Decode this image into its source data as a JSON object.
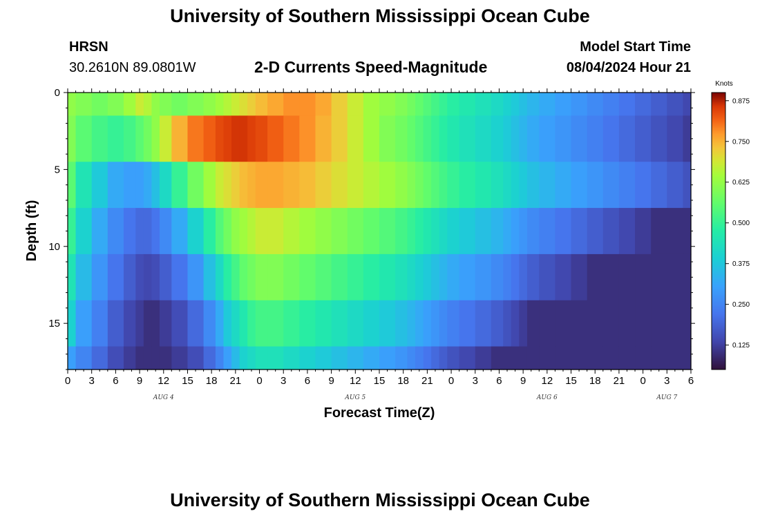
{
  "header": {
    "title": "University of Southern Mississippi Ocean Cube",
    "station": "HRSN",
    "coords": "30.2610N  89.0801W",
    "subtitle": "2-D Currents Speed-Magnitude",
    "model_start_label": "Model Start Time",
    "model_start_value": "08/04/2024 Hour 21"
  },
  "footer": {
    "title": "University of Southern Mississippi Ocean Cube"
  },
  "chart_data": {
    "type": "heatmap",
    "title": "2-D Currents Speed-Magnitude",
    "xlabel": "Forecast Time(Z)",
    "ylabel": "Depth (ft)",
    "xlim_hours": [
      0,
      78
    ],
    "ylim_depth_ft": [
      0,
      18
    ],
    "x_ticks": [
      "0",
      "3",
      "6",
      "9",
      "12",
      "15",
      "18",
      "21",
      "0",
      "3",
      "6",
      "9",
      "12",
      "15",
      "18",
      "21",
      "0",
      "3",
      "6",
      "9",
      "12",
      "15",
      "18",
      "21",
      "0",
      "3",
      "6"
    ],
    "day_labels": [
      {
        "label": "AUG 4",
        "hour": 12
      },
      {
        "label": "AUG 5",
        "hour": 36
      },
      {
        "label": "AUG 6",
        "hour": 60
      },
      {
        "label": "AUG 7",
        "hour": 75
      }
    ],
    "y_ticks": [
      "0",
      "5",
      "10",
      "15"
    ],
    "y_tick_values": [
      0,
      5,
      10,
      15
    ],
    "colorbar": {
      "title": "Knots",
      "min": 0.05,
      "max": 0.9,
      "ticks": [
        "0.125",
        "0.250",
        "0.375",
        "0.500",
        "0.625",
        "0.750",
        "0.875"
      ],
      "tick_values": [
        0.125,
        0.25,
        0.375,
        0.5,
        0.625,
        0.75,
        0.875
      ]
    },
    "hours": [
      0,
      2,
      4,
      6,
      8,
      9,
      10,
      11,
      12,
      14,
      16,
      18,
      19,
      20,
      21,
      22,
      23,
      24,
      26,
      28,
      30,
      32,
      34,
      36,
      38,
      40,
      42,
      43,
      44,
      45,
      46,
      47,
      48,
      50,
      52,
      54,
      55,
      56,
      57,
      58,
      60,
      62,
      64,
      66,
      68,
      70,
      72,
      74,
      76,
      78
    ],
    "depths_ft": [
      0,
      3,
      6,
      9,
      12,
      15,
      18
    ],
    "values_knots": [
      [
        0.62,
        0.6,
        0.58,
        0.6,
        0.64,
        0.68,
        0.66,
        0.62,
        0.6,
        0.58,
        0.6,
        0.62,
        0.64,
        0.66,
        0.68,
        0.7,
        0.72,
        0.74,
        0.76,
        0.78,
        0.78,
        0.76,
        0.72,
        0.68,
        0.64,
        0.62,
        0.6,
        0.58,
        0.56,
        0.54,
        0.52,
        0.5,
        0.48,
        0.46,
        0.44,
        0.42,
        0.4,
        0.38,
        0.36,
        0.34,
        0.32,
        0.3,
        0.28,
        0.26,
        0.24,
        0.22,
        0.2,
        0.18,
        0.16,
        0.14
      ],
      [
        0.6,
        0.55,
        0.52,
        0.5,
        0.52,
        0.55,
        0.58,
        0.62,
        0.68,
        0.75,
        0.8,
        0.82,
        0.84,
        0.85,
        0.86,
        0.86,
        0.85,
        0.84,
        0.82,
        0.8,
        0.78,
        0.75,
        0.72,
        0.68,
        0.64,
        0.6,
        0.58,
        0.56,
        0.54,
        0.52,
        0.5,
        0.48,
        0.46,
        0.44,
        0.42,
        0.4,
        0.38,
        0.36,
        0.34,
        0.32,
        0.3,
        0.28,
        0.26,
        0.24,
        0.22,
        0.2,
        0.18,
        0.16,
        0.14,
        0.12
      ],
      [
        0.55,
        0.45,
        0.38,
        0.32,
        0.3,
        0.3,
        0.32,
        0.36,
        0.42,
        0.5,
        0.58,
        0.64,
        0.68,
        0.7,
        0.72,
        0.74,
        0.75,
        0.76,
        0.76,
        0.75,
        0.74,
        0.72,
        0.7,
        0.68,
        0.66,
        0.64,
        0.62,
        0.6,
        0.58,
        0.56,
        0.54,
        0.52,
        0.5,
        0.48,
        0.46,
        0.44,
        0.42,
        0.4,
        0.38,
        0.36,
        0.34,
        0.32,
        0.3,
        0.28,
        0.26,
        0.24,
        0.22,
        0.2,
        0.18,
        0.16
      ],
      [
        0.5,
        0.4,
        0.32,
        0.26,
        0.22,
        0.2,
        0.2,
        0.22,
        0.26,
        0.32,
        0.4,
        0.48,
        0.54,
        0.58,
        0.62,
        0.64,
        0.66,
        0.68,
        0.68,
        0.66,
        0.64,
        0.62,
        0.6,
        0.58,
        0.56,
        0.54,
        0.52,
        0.5,
        0.48,
        0.46,
        0.44,
        0.42,
        0.4,
        0.38,
        0.36,
        0.34,
        0.32,
        0.3,
        0.28,
        0.26,
        0.24,
        0.22,
        0.2,
        0.18,
        0.16,
        0.14,
        0.12,
        0.1,
        0.1,
        0.1
      ],
      [
        0.45,
        0.35,
        0.28,
        0.22,
        0.18,
        0.15,
        0.14,
        0.15,
        0.18,
        0.22,
        0.28,
        0.36,
        0.42,
        0.48,
        0.52,
        0.56,
        0.58,
        0.6,
        0.6,
        0.58,
        0.56,
        0.54,
        0.52,
        0.5,
        0.48,
        0.46,
        0.44,
        0.42,
        0.4,
        0.38,
        0.36,
        0.34,
        0.32,
        0.3,
        0.28,
        0.26,
        0.24,
        0.22,
        0.2,
        0.18,
        0.16,
        0.14,
        0.12,
        0.1,
        0.1,
        0.1,
        0.1,
        0.1,
        0.1,
        0.1
      ],
      [
        0.4,
        0.3,
        0.24,
        0.18,
        0.14,
        0.12,
        0.1,
        0.1,
        0.12,
        0.15,
        0.2,
        0.26,
        0.32,
        0.38,
        0.42,
        0.46,
        0.5,
        0.52,
        0.52,
        0.5,
        0.48,
        0.46,
        0.44,
        0.42,
        0.4,
        0.38,
        0.36,
        0.34,
        0.32,
        0.3,
        0.28,
        0.26,
        0.24,
        0.22,
        0.2,
        0.18,
        0.16,
        0.14,
        0.12,
        0.1,
        0.1,
        0.1,
        0.1,
        0.1,
        0.1,
        0.1,
        0.1,
        0.1,
        0.1,
        0.1
      ],
      [
        0.3,
        0.25,
        0.2,
        0.15,
        0.12,
        0.1,
        0.1,
        0.1,
        0.1,
        0.12,
        0.15,
        0.2,
        0.25,
        0.3,
        0.35,
        0.4,
        0.42,
        0.44,
        0.44,
        0.42,
        0.4,
        0.38,
        0.36,
        0.34,
        0.32,
        0.3,
        0.28,
        0.26,
        0.24,
        0.22,
        0.2,
        0.18,
        0.16,
        0.14,
        0.12,
        0.1,
        0.1,
        0.1,
        0.1,
        0.1,
        0.1,
        0.1,
        0.1,
        0.1,
        0.1,
        0.1,
        0.1,
        0.1,
        0.1,
        0.1
      ]
    ]
  }
}
